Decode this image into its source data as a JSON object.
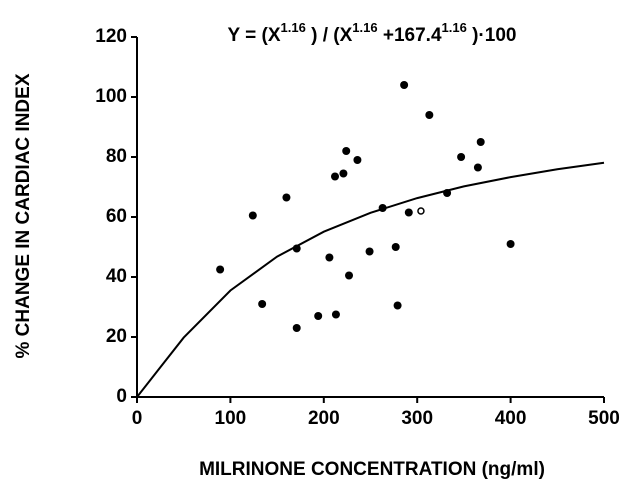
{
  "chart_data": {
    "type": "scatter",
    "title_parts": [
      {
        "text": "Y = (X"
      },
      {
        "text": "1.16",
        "sup": true
      },
      {
        "text": " ) / (X"
      },
      {
        "text": "1.16",
        "sup": true
      },
      {
        "text": " +167.4"
      },
      {
        "text": "1.16",
        "sup": true
      },
      {
        "text": " )·100"
      }
    ],
    "x_label": "MILRINONE CONCENTRATION (ng/ml)",
    "y_label": "% CHANGE IN CARDIAC INDEX",
    "xlim": [
      0,
      500
    ],
    "xticks": [
      0,
      100,
      200,
      300,
      400,
      500
    ],
    "ylim": [
      0,
      120
    ],
    "yticks": [
      0,
      20,
      40,
      60,
      80,
      100,
      120
    ],
    "series": [
      {
        "kind": "line",
        "color": "#000000",
        "x": [
          0,
          25,
          50,
          100,
          150,
          200,
          250,
          300,
          350,
          400,
          450,
          500
        ],
        "values": [
          0,
          9.9,
          19.8,
          35.5,
          46.8,
          55.1,
          61.4,
          66.3,
          70.2,
          73.3,
          75.9,
          78.1
        ]
      },
      {
        "kind": "points",
        "marker": "filled",
        "color": "#000000",
        "x": [
          89,
          124,
          134,
          160,
          171,
          171,
          194,
          206,
          213,
          212,
          221,
          224,
          227,
          236,
          249,
          263,
          277,
          279,
          286,
          291,
          313,
          332,
          347,
          365,
          368,
          400
        ],
        "values": [
          42.5,
          60.5,
          31,
          66.5,
          49.5,
          23,
          27,
          46.5,
          27.5,
          73.5,
          74.5,
          82,
          40.5,
          79,
          48.5,
          63,
          50,
          30.5,
          104,
          61.5,
          94,
          68,
          80,
          76.5,
          85,
          51
        ]
      },
      {
        "kind": "points",
        "marker": "open",
        "color": "#000000",
        "x": [
          304
        ],
        "values": [
          62
        ]
      }
    ]
  }
}
